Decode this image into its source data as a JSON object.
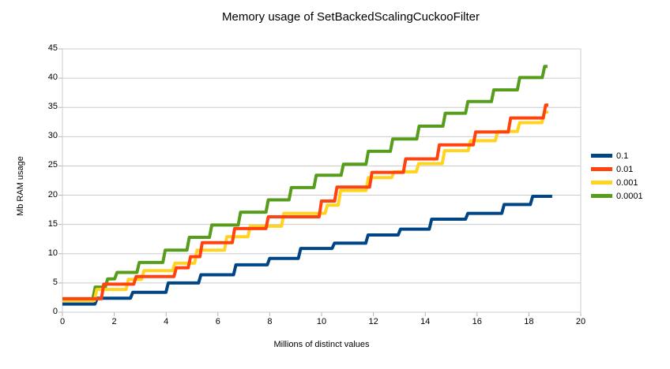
{
  "chart_data": {
    "type": "line",
    "style": "step",
    "title": "Memory usage of SetBackedScalingCuckooFilter",
    "xlabel": "Millions of distinct values",
    "ylabel": "Mb RAM usage",
    "xlim": [
      0,
      20
    ],
    "ylim": [
      0,
      45
    ],
    "x_ticks": [
      0,
      2,
      4,
      6,
      8,
      10,
      12,
      14,
      16,
      18,
      20
    ],
    "y_ticks": [
      0,
      5,
      10,
      15,
      20,
      25,
      30,
      35,
      40,
      45
    ],
    "grid": "horizontal-only",
    "legend_position": "right",
    "series": [
      {
        "name": "0.1",
        "color": "#004586",
        "start": [
          0,
          1.4
        ],
        "steps": [
          [
            1.3,
            2.4
          ],
          [
            2.67,
            3.4
          ],
          [
            4.04,
            5.0
          ],
          [
            5.3,
            6.4
          ],
          [
            6.65,
            8.1
          ],
          [
            7.95,
            9.2
          ],
          [
            9.15,
            10.9
          ],
          [
            10.45,
            11.8
          ],
          [
            11.75,
            13.2
          ],
          [
            13.0,
            14.2
          ],
          [
            14.2,
            15.9
          ],
          [
            15.6,
            16.9
          ],
          [
            17.0,
            18.4
          ],
          [
            18.1,
            19.8
          ]
        ],
        "end_x": 18.9
      },
      {
        "name": "0.01",
        "color": "#ff420e",
        "start": [
          0,
          2.3
        ],
        "steps": [
          [
            1.55,
            4.8
          ],
          [
            2.8,
            6.1
          ],
          [
            4.35,
            7.6
          ],
          [
            4.9,
            9.5
          ],
          [
            5.35,
            11.9
          ],
          [
            6.6,
            14.3
          ],
          [
            7.9,
            16.3
          ],
          [
            9.95,
            19.0
          ],
          [
            10.55,
            21.4
          ],
          [
            11.9,
            23.9
          ],
          [
            13.2,
            26.2
          ],
          [
            14.5,
            28.6
          ],
          [
            15.9,
            30.8
          ],
          [
            17.25,
            33.2
          ],
          [
            18.6,
            35.4
          ]
        ],
        "end_x": 18.75
      },
      {
        "name": "0.001",
        "color": "#ffd320",
        "start": [
          0,
          2.0
        ],
        "steps": [
          [
            1.28,
            3.9
          ],
          [
            2.5,
            5.6
          ],
          [
            3.1,
            7.1
          ],
          [
            4.3,
            8.4
          ],
          [
            5.15,
            10.6
          ],
          [
            6.3,
            12.9
          ],
          [
            7.2,
            14.7
          ],
          [
            8.5,
            16.9
          ],
          [
            10.18,
            18.3
          ],
          [
            10.69,
            20.8
          ],
          [
            11.76,
            23.0
          ],
          [
            12.75,
            24.0
          ],
          [
            13.7,
            25.4
          ],
          [
            14.7,
            27.6
          ],
          [
            15.7,
            29.3
          ],
          [
            16.75,
            30.9
          ],
          [
            17.6,
            32.4
          ],
          [
            18.55,
            34.2
          ]
        ],
        "end_x": 18.75
      },
      {
        "name": "0.0001",
        "color": "#579d1c",
        "start": [
          0,
          2.3
        ],
        "steps": [
          [
            1.22,
            4.3
          ],
          [
            1.7,
            5.7
          ],
          [
            2.06,
            6.8
          ],
          [
            2.92,
            8.5
          ],
          [
            3.92,
            10.6
          ],
          [
            4.85,
            12.8
          ],
          [
            5.72,
            14.9
          ],
          [
            6.83,
            17.1
          ],
          [
            7.9,
            19.2
          ],
          [
            8.79,
            21.3
          ],
          [
            9.75,
            23.4
          ],
          [
            10.8,
            25.3
          ],
          [
            11.76,
            27.5
          ],
          [
            12.7,
            29.6
          ],
          [
            13.72,
            31.8
          ],
          [
            14.73,
            34.0
          ],
          [
            15.6,
            36.0
          ],
          [
            16.6,
            38.0
          ],
          [
            17.6,
            40.1
          ],
          [
            18.56,
            42.0
          ]
        ],
        "end_x": 18.72
      }
    ]
  },
  "colors": {
    "background": "#ffffff",
    "gridline": "#cccccc",
    "plot_border": "#cccccc",
    "tick_mark": "#b3b3b3",
    "text": "#000000"
  }
}
